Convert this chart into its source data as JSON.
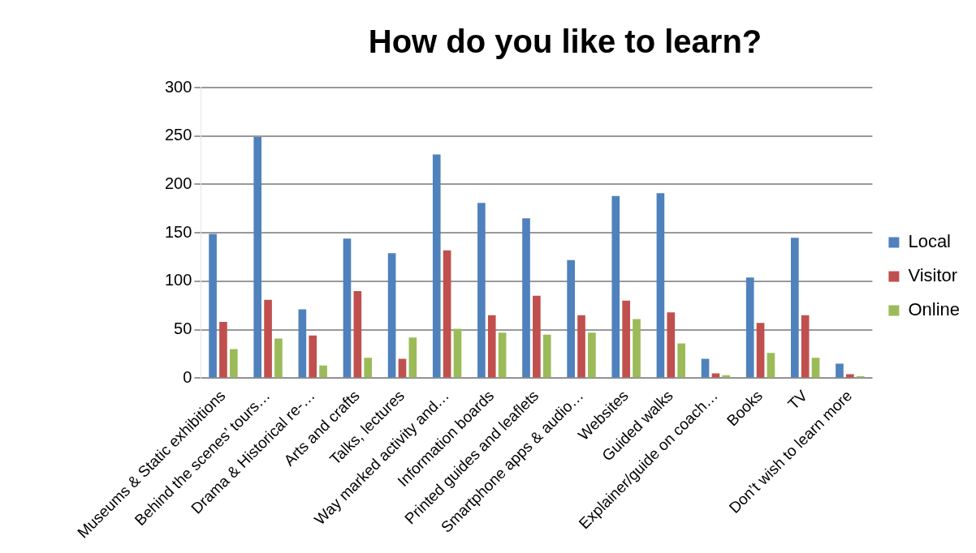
{
  "chart_data": {
    "type": "bar",
    "title": "How do you like to learn?",
    "categories": [
      "Museums & Static exhibitions",
      "Behind the scenes’ tours…",
      "Drama & Historical re-…",
      "Arts and crafts",
      "Talks, lectures",
      "Way marked activity and…",
      "Information boards",
      "Printed guides and leaflets",
      "Smartphone apps & audio…",
      "Websites",
      "Guided walks",
      "Explainer/guide on coach…",
      "Books",
      "TV",
      "Don’t wish to learn more"
    ],
    "series": [
      {
        "name": "Local",
        "color": "#4f81bd",
        "values": [
          149,
          249,
          71,
          144,
          129,
          231,
          181,
          165,
          122,
          188,
          191,
          20,
          104,
          145,
          15
        ]
      },
      {
        "name": "Visitor",
        "color": "#c0504d",
        "values": [
          58,
          81,
          44,
          90,
          20,
          132,
          65,
          85,
          65,
          80,
          68,
          5,
          57,
          65,
          4
        ]
      },
      {
        "name": "Online",
        "color": "#9bbb59",
        "values": [
          30,
          41,
          13,
          21,
          42,
          51,
          47,
          45,
          47,
          61,
          36,
          3,
          26,
          21,
          2
        ]
      }
    ],
    "ylim": [
      0,
      300
    ],
    "yticks": [
      0,
      50,
      100,
      150,
      200,
      250,
      300
    ],
    "grid": "y",
    "legend": "right"
  }
}
